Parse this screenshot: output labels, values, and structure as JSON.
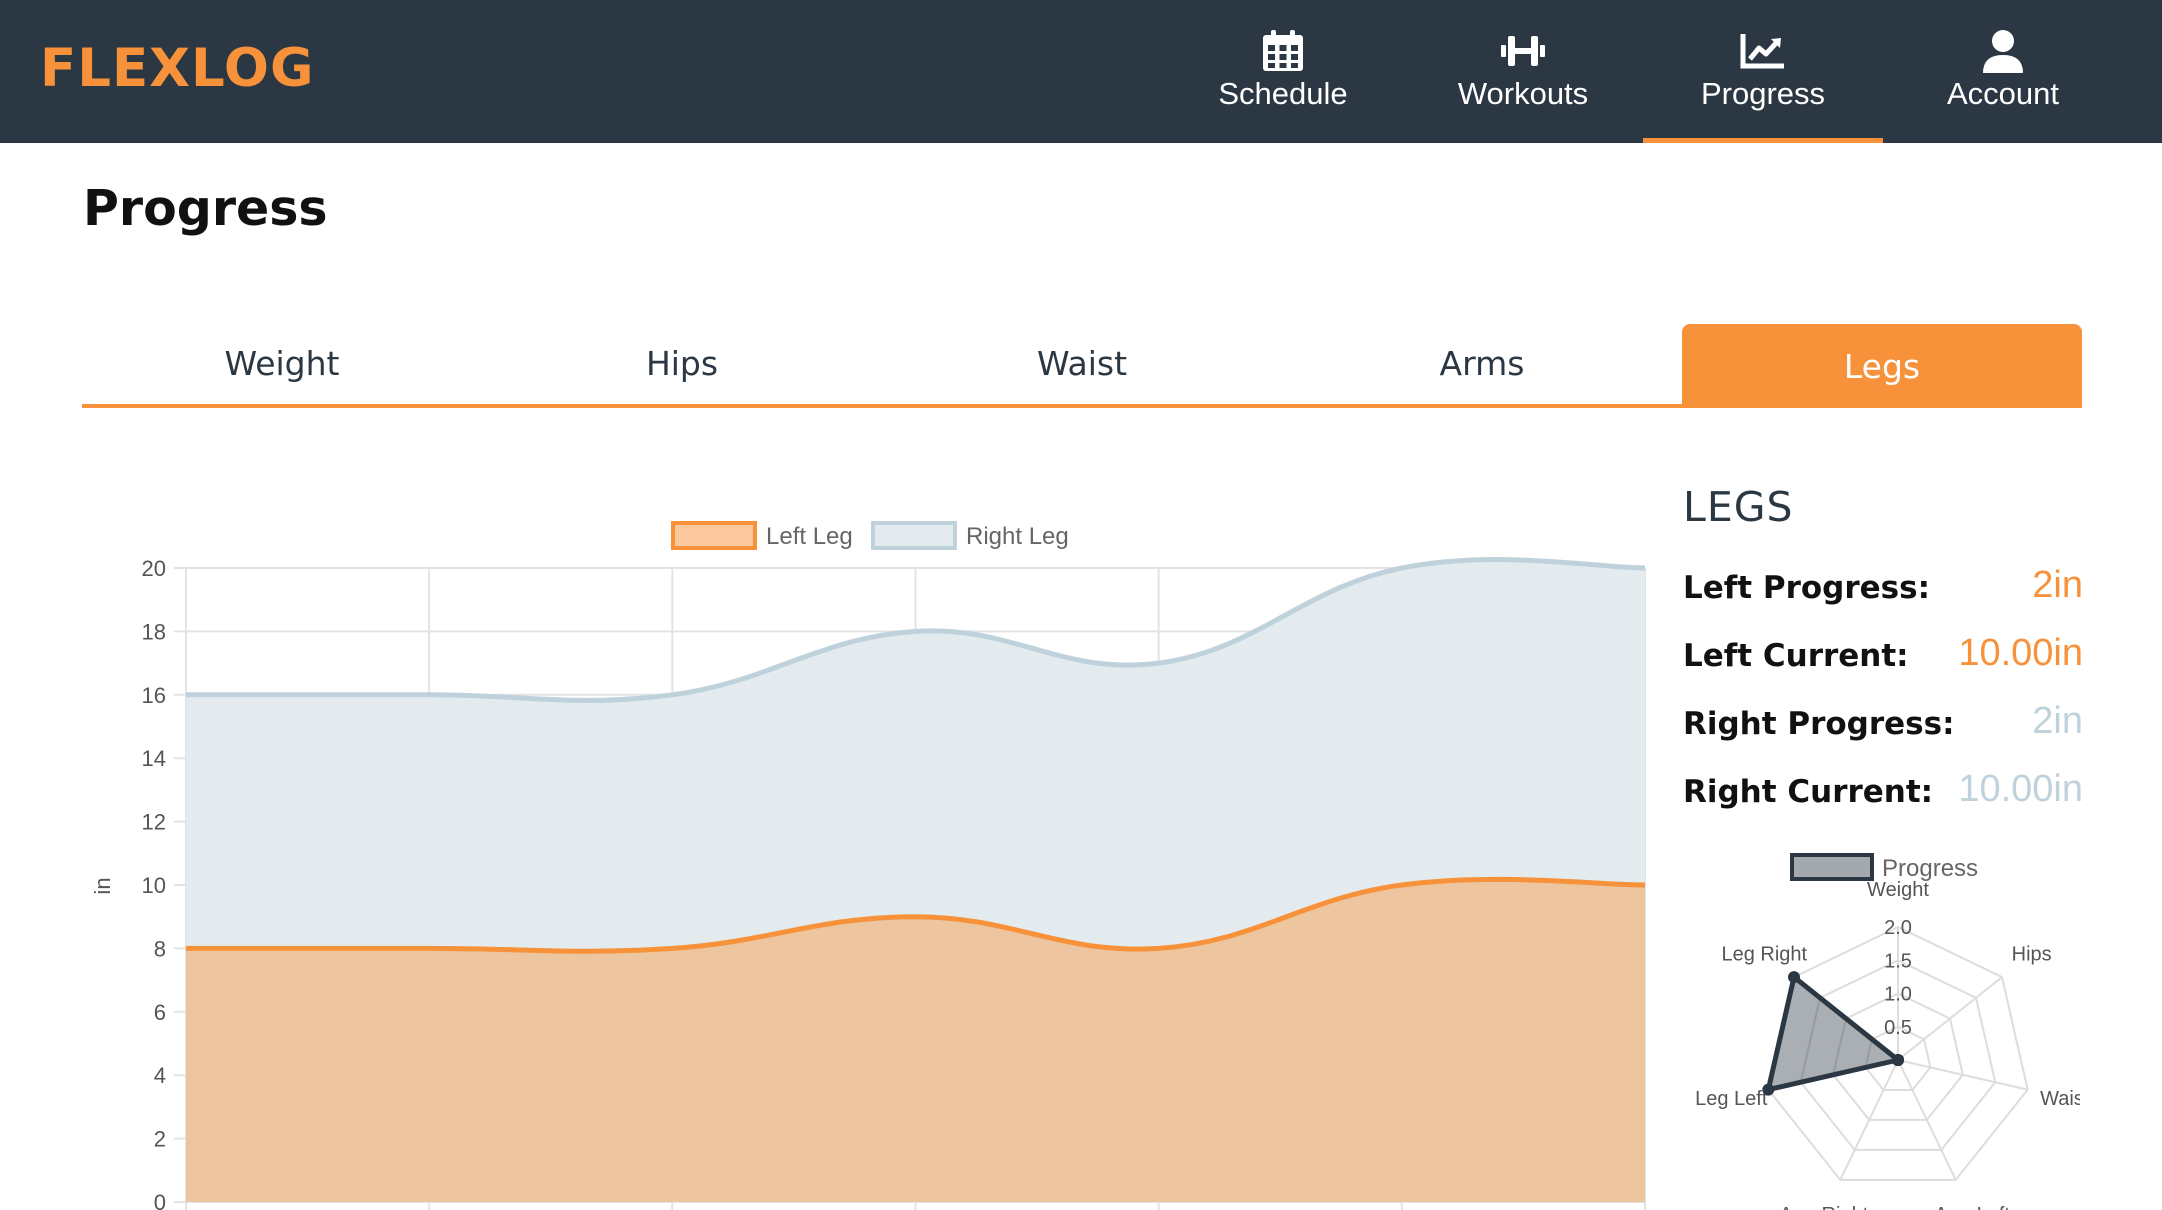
{
  "brand": "FLEXLOG",
  "nav": [
    {
      "label": "Schedule",
      "icon": "calendar-icon"
    },
    {
      "label": "Workouts",
      "icon": "dumbbell-icon"
    },
    {
      "label": "Progress",
      "icon": "chart-line-icon",
      "active": true
    },
    {
      "label": "Account",
      "icon": "user-icon"
    }
  ],
  "page": {
    "title": "Progress"
  },
  "tabs": [
    {
      "label": "Weight"
    },
    {
      "label": "Hips"
    },
    {
      "label": "Waist"
    },
    {
      "label": "Arms"
    },
    {
      "label": "Legs",
      "active": true
    }
  ],
  "side": {
    "title": "LEGS",
    "stats": [
      {
        "label": "Left Progress:",
        "value": "2in"
      },
      {
        "label": "Left Current:",
        "value": "10.00in"
      },
      {
        "label": "Right Progress:",
        "value": "2in"
      },
      {
        "label": "Right Current:",
        "value": "10.00in"
      }
    ]
  },
  "colors": {
    "accent": "#f7923a",
    "nav_bg": "#2b3843",
    "right_leg": "#bfd2db",
    "radar": "#2b3843"
  },
  "chart_data": [
    {
      "type": "area",
      "ylabel": "in",
      "ylim": [
        0,
        20
      ],
      "yticks": [
        0,
        2,
        4,
        6,
        8,
        10,
        12,
        14,
        16,
        18,
        20
      ],
      "legend_position": "top",
      "series": [
        {
          "name": "Left Leg",
          "values": [
            8,
            8,
            8,
            9,
            8,
            10,
            10
          ]
        },
        {
          "name": "Right Leg",
          "values": [
            16,
            16,
            16,
            18,
            17,
            20,
            20
          ]
        }
      ]
    },
    {
      "type": "radar",
      "legend": "Progress",
      "axes": [
        "Weight",
        "Hips",
        "Waist",
        "Arm Left",
        "Arm Right",
        "Leg Left",
        "Leg Right"
      ],
      "ticks": [
        "0.5",
        "1.0",
        "1.5",
        "2.0"
      ],
      "rmax": 2.0,
      "values": [
        0,
        0,
        0,
        0,
        0,
        2,
        2
      ]
    }
  ]
}
